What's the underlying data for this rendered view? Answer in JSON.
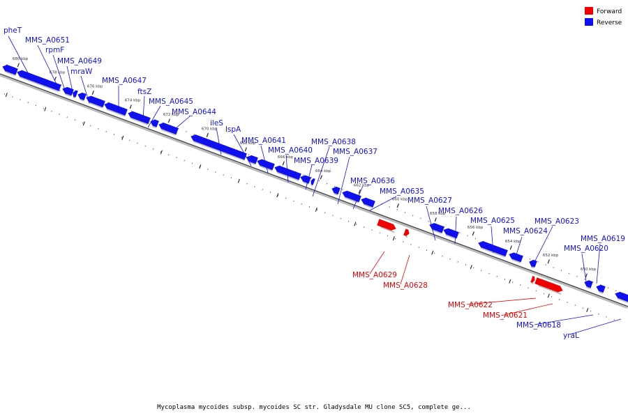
{
  "colors": {
    "forward": "#ee0000",
    "reverse": "#1010ee",
    "axis": "#999999"
  },
  "legend": [
    {
      "label": "Forward",
      "color": "#ee0000"
    },
    {
      "label": "Reverse",
      "color": "#1010ee"
    }
  ],
  "caption": "Mycoplasma mycoides subsp. mycoides SC str. Gladysdale MU clone SC5, complete ge...",
  "ticks": [
    "680 kbp",
    "678 kbp",
    "676 kbp",
    "674 kbp",
    "672 kbp",
    "670 kbp",
    "668 kbp",
    "666 kbp",
    "664 kbp",
    "662 kbp",
    "660 kbp",
    "658 kbp",
    "656 kbp",
    "654 kbp",
    "652 kbp",
    "650 kbp"
  ],
  "genes": [
    {
      "label": "pheT",
      "strand": "reverse"
    },
    {
      "label": "MMS_A0651",
      "strand": "reverse"
    },
    {
      "label": "rpmF",
      "strand": "reverse"
    },
    {
      "label": "MMS_A0649",
      "strand": "reverse"
    },
    {
      "label": "mraW",
      "strand": "reverse"
    },
    {
      "label": "MMS_A0647",
      "strand": "reverse"
    },
    {
      "label": "ftsZ",
      "strand": "reverse"
    },
    {
      "label": "MMS_A0645",
      "strand": "reverse"
    },
    {
      "label": "MMS_A0644",
      "strand": "reverse"
    },
    {
      "label": "ileS",
      "strand": "reverse"
    },
    {
      "label": "lspA",
      "strand": "reverse"
    },
    {
      "label": "MMS_A0641",
      "strand": "reverse"
    },
    {
      "label": "MMS_A0640",
      "strand": "reverse"
    },
    {
      "label": "MMS_A0639",
      "strand": "reverse"
    },
    {
      "label": "MMS_A0638",
      "strand": "reverse"
    },
    {
      "label": "MMS_A0637",
      "strand": "reverse"
    },
    {
      "label": "MMS_A0636",
      "strand": "reverse"
    },
    {
      "label": "MMS_A0635",
      "strand": "reverse"
    },
    {
      "label": "MMS_A0629",
      "strand": "forward"
    },
    {
      "label": "MMS_A0628",
      "strand": "forward"
    },
    {
      "label": "MMS_A0627",
      "strand": "reverse"
    },
    {
      "label": "MMS_A0626",
      "strand": "reverse"
    },
    {
      "label": "MMS_A0625",
      "strand": "reverse"
    },
    {
      "label": "MMS_A0624",
      "strand": "reverse"
    },
    {
      "label": "MMS_A0623",
      "strand": "reverse"
    },
    {
      "label": "MMS_A0622",
      "strand": "forward"
    },
    {
      "label": "MMS_A0621",
      "strand": "forward"
    },
    {
      "label": "MMS_A0620",
      "strand": "reverse"
    },
    {
      "label": "MMS_A0619",
      "strand": "reverse"
    },
    {
      "label": "MMS_A0618",
      "strand": "reverse"
    },
    {
      "label": "yraL",
      "strand": "reverse"
    }
  ]
}
